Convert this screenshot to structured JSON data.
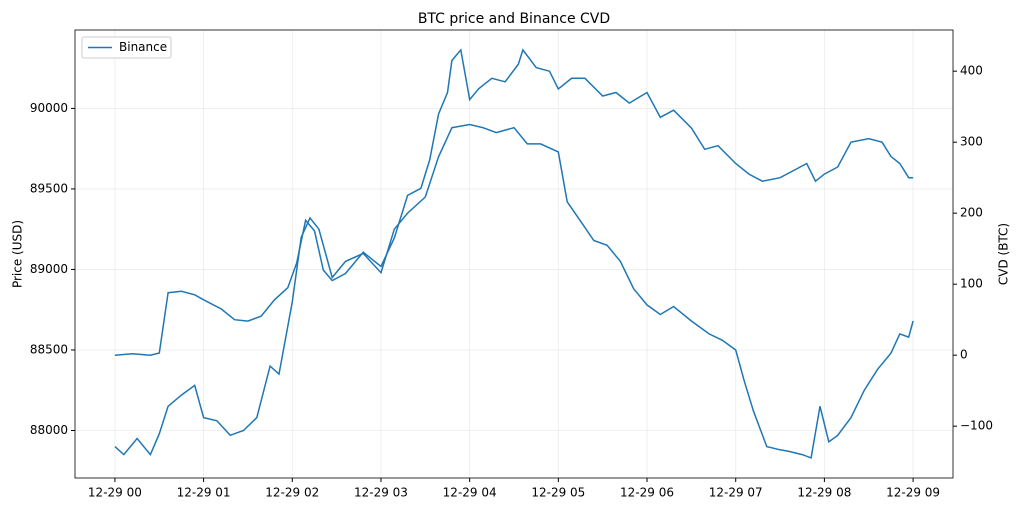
{
  "chart_data": {
    "type": "line",
    "title": "BTC price and Binance CVD",
    "ylabel": "Price (USD)",
    "y2label": "CVD (BTC)",
    "xlim": [
      -0.45,
      9.45
    ],
    "xticks": [
      {
        "value": 0,
        "label": "12-29 00"
      },
      {
        "value": 1,
        "label": "12-29 01"
      },
      {
        "value": 2,
        "label": "12-29 02"
      },
      {
        "value": 3,
        "label": "12-29 03"
      },
      {
        "value": 4,
        "label": "12-29 04"
      },
      {
        "value": 5,
        "label": "12-29 05"
      },
      {
        "value": 6,
        "label": "12-29 06"
      },
      {
        "value": 7,
        "label": "12-29 07"
      },
      {
        "value": 8,
        "label": "12-29 08"
      },
      {
        "value": 9,
        "label": "12-29 09"
      }
    ],
    "ylim": [
      87705,
      90487
    ],
    "yticks": [
      88000,
      88500,
      89000,
      89500,
      90000
    ],
    "y2lim": [
      -173,
      458
    ],
    "y2ticks": [
      {
        "value": -100,
        "label": "−100"
      },
      0,
      100,
      200,
      300,
      400
    ],
    "grid": true,
    "legend": "upper left",
    "series": [
      {
        "name": "Binance",
        "color": "#1f77b4",
        "axis": "y",
        "x": [
          0,
          0.1,
          0.25,
          0.4,
          0.5,
          0.6,
          0.75,
          0.9,
          1.0,
          1.15,
          1.3,
          1.45,
          1.6,
          1.75,
          1.85,
          2.0,
          2.1,
          2.2,
          2.3,
          2.45,
          2.6,
          2.8,
          3.0,
          3.15,
          3.3,
          3.5,
          3.65,
          3.8,
          4.0,
          4.15,
          4.3,
          4.5,
          4.65,
          4.8,
          5.0,
          5.1,
          5.25,
          5.4,
          5.55,
          5.7,
          5.85,
          6.0,
          6.15,
          6.3,
          6.5,
          6.7,
          6.85,
          7.0,
          7.1,
          7.2,
          7.35,
          7.5,
          7.6,
          7.75,
          7.85,
          7.95,
          8.05,
          8.15,
          8.3,
          8.45,
          8.6,
          8.75,
          8.85,
          8.95,
          9.0
        ],
        "values": [
          87900,
          87850,
          87950,
          87850,
          87980,
          88150,
          88220,
          88280,
          88080,
          88060,
          87970,
          88000,
          88080,
          88400,
          88350,
          88800,
          89200,
          89320,
          89250,
          88950,
          89050,
          89100,
          88980,
          89250,
          89350,
          89450,
          89700,
          89880,
          89900,
          89880,
          89850,
          89880,
          89780,
          89780,
          89730,
          89420,
          89300,
          89180,
          89150,
          89050,
          88880,
          88780,
          88720,
          88770,
          88680,
          88600,
          88560,
          88500,
          88300,
          88120,
          87900,
          87880,
          87870,
          87850,
          87830,
          88150,
          87930,
          87970,
          88080,
          88250,
          88380,
          88480,
          88600,
          88580,
          88680
        ]
      },
      {
        "color": "#1f77b4",
        "axis": "y2",
        "x": [
          0,
          0.2,
          0.4,
          0.5,
          0.6,
          0.75,
          0.9,
          1.0,
          1.2,
          1.35,
          1.5,
          1.65,
          1.8,
          1.95,
          2.05,
          2.15,
          2.25,
          2.35,
          2.45,
          2.6,
          2.8,
          3.0,
          3.15,
          3.3,
          3.45,
          3.55,
          3.65,
          3.75,
          3.8,
          3.9,
          4.0,
          4.1,
          4.25,
          4.4,
          4.55,
          4.6,
          4.75,
          4.9,
          5.0,
          5.15,
          5.3,
          5.5,
          5.65,
          5.8,
          6.0,
          6.15,
          6.3,
          6.5,
          6.65,
          6.8,
          7.0,
          7.15,
          7.3,
          7.5,
          7.65,
          7.8,
          7.9,
          8.0,
          8.15,
          8.3,
          8.5,
          8.65,
          8.75,
          8.85,
          8.95,
          9.0
        ],
        "values": [
          0,
          2,
          0,
          3,
          88,
          90,
          85,
          78,
          65,
          50,
          48,
          55,
          78,
          95,
          130,
          190,
          175,
          120,
          105,
          115,
          145,
          125,
          165,
          225,
          235,
          275,
          340,
          370,
          415,
          430,
          360,
          375,
          390,
          385,
          410,
          430,
          405,
          400,
          375,
          390,
          390,
          365,
          370,
          355,
          370,
          335,
          345,
          320,
          290,
          295,
          270,
          255,
          245,
          250,
          260,
          270,
          245,
          255,
          265,
          300,
          305,
          300,
          280,
          270,
          250,
          250
        ]
      }
    ]
  }
}
